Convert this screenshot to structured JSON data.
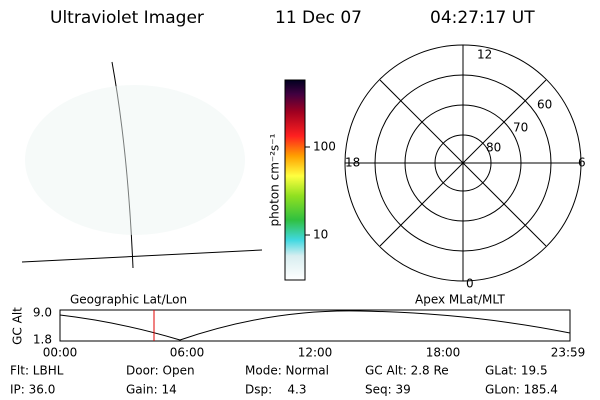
{
  "header": {
    "title": "Ultraviolet Imager",
    "date": "11 Dec 07",
    "time": "04:27:17 UT"
  },
  "geo_panel": {
    "label": "Geographic Lat/Lon"
  },
  "colorbar": {
    "label": "photon cm⁻²s⁻¹",
    "ticks": [
      "100",
      "10"
    ]
  },
  "polar_panel": {
    "label": "Apex MLat/MLT",
    "mlt_labels": [
      "12",
      "18",
      "6",
      "0"
    ],
    "lat_labels": [
      "60",
      "70",
      "80"
    ]
  },
  "altitude_plot": {
    "ylabel": "GC Alt",
    "yticks": [
      "9.0",
      "1.8"
    ],
    "xticks": [
      "00:00",
      "06:00",
      "12:00",
      "18:00",
      "23:59"
    ]
  },
  "info": [
    [
      "Flt: LBHL",
      "Door: Open",
      "Mode: Normal",
      "GC Alt: 2.8 Re",
      "GLat: 19.5"
    ],
    [
      "IP: 36.0",
      "Gain: 14",
      "Dsp:    4.3",
      "Seq: 39",
      "GLon: 185.4"
    ]
  ]
}
